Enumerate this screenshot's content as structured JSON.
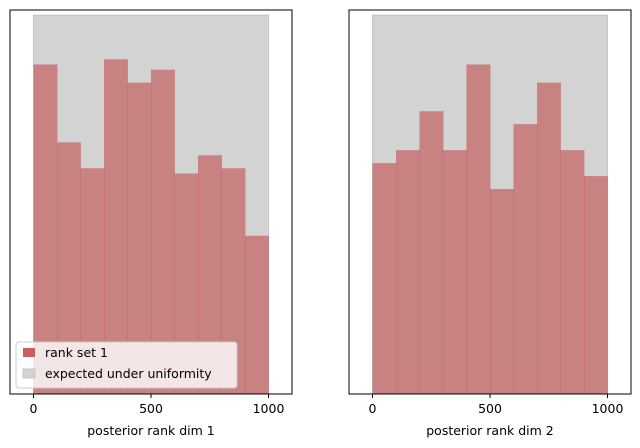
{
  "chart_data": [
    {
      "type": "bar",
      "xlabel": "posterior rank dim 1",
      "ylabel": "",
      "xlim": [
        -100,
        1100
      ],
      "ylim": [
        0,
        14.8
      ],
      "xticks": [
        "0",
        "500",
        "1000"
      ],
      "bin_edges": [
        0,
        100,
        200,
        300,
        400,
        500,
        600,
        700,
        800,
        900,
        1000
      ],
      "uniformity_band": {
        "lower": 0,
        "upper": 14.6
      },
      "series": [
        {
          "name": "rank set 1",
          "color": "#c0504f",
          "values": [
            12.7,
            9.7,
            8.7,
            12.9,
            12.0,
            12.5,
            8.5,
            9.2,
            8.7,
            6.1
          ]
        },
        {
          "name": "expected under uniformity",
          "color": "#d3d3d3"
        }
      ],
      "legend": {
        "placement": "lower-left",
        "entries": [
          "rank set 1",
          "expected under uniformity"
        ]
      }
    },
    {
      "type": "bar",
      "xlabel": "posterior rank dim 2",
      "ylabel": "",
      "xlim": [
        -100,
        1100
      ],
      "ylim": [
        0,
        14.8
      ],
      "xticks": [
        "0",
        "500",
        "1000"
      ],
      "bin_edges": [
        0,
        100,
        200,
        300,
        400,
        500,
        600,
        700,
        800,
        900,
        1000
      ],
      "uniformity_band": {
        "lower": 0,
        "upper": 14.6
      },
      "series": [
        {
          "name": "rank set 1",
          "color": "#c0504f",
          "values": [
            8.9,
            9.4,
            10.9,
            9.4,
            12.7,
            7.9,
            10.4,
            12.0,
            9.4,
            8.4
          ]
        }
      ]
    }
  ]
}
